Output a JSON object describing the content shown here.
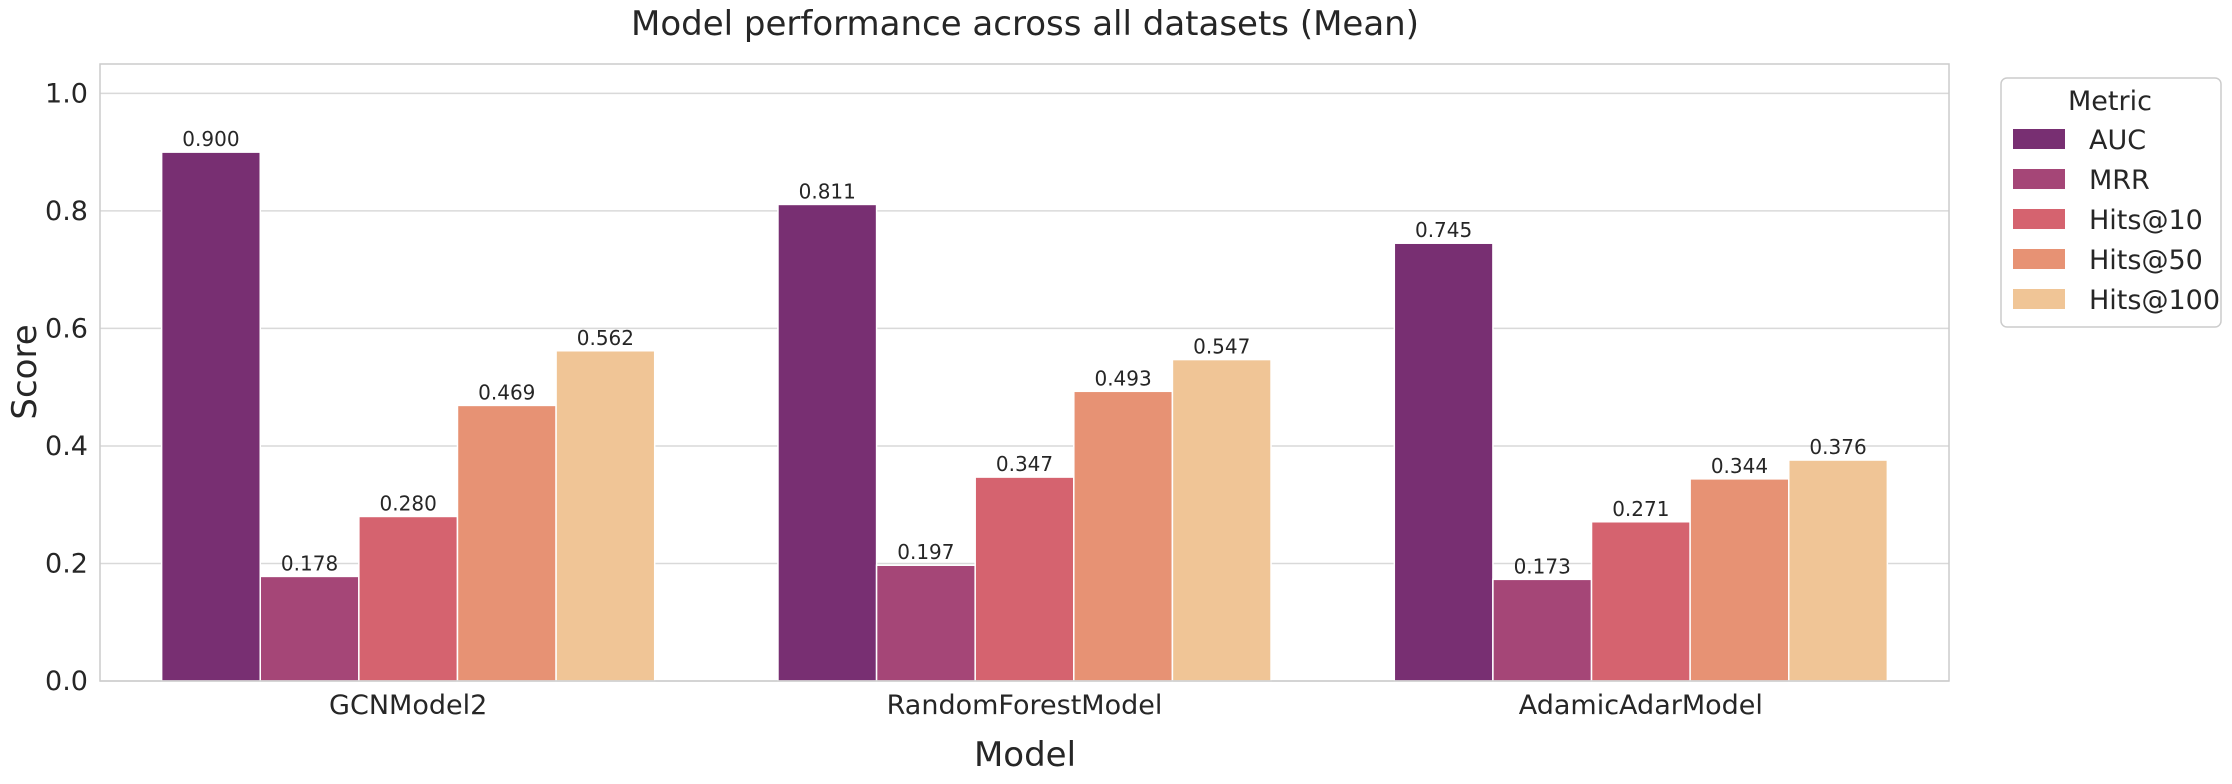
{
  "chart_data": {
    "type": "bar",
    "title": "Model performance across all datasets (Mean)",
    "xlabel": "Model",
    "ylabel": "Score",
    "categories": [
      "GCNModel2",
      "RandomForestModel",
      "AdamicAdarModel"
    ],
    "ylim": [
      0,
      1.05
    ],
    "yticks": [
      "0.0",
      "0.2",
      "0.4",
      "0.6",
      "0.8",
      "1.0"
    ],
    "grid": true,
    "legend": {
      "title": "Metric",
      "placement": "outside-top-right"
    },
    "series": [
      {
        "name": "AUC",
        "color": "#782f72",
        "values": [
          0.9,
          0.811,
          0.745
        ],
        "labels": [
          "0.900",
          "0.811",
          "0.745"
        ]
      },
      {
        "name": "MRR",
        "color": "#a54677",
        "values": [
          0.178,
          0.197,
          0.173
        ],
        "labels": [
          "0.178",
          "0.197",
          "0.173"
        ]
      },
      {
        "name": "Hits@10",
        "color": "#d5636f",
        "values": [
          0.28,
          0.347,
          0.271
        ],
        "labels": [
          "0.280",
          "0.347",
          "0.271"
        ]
      },
      {
        "name": "Hits@50",
        "color": "#e79274",
        "values": [
          0.469,
          0.493,
          0.344
        ],
        "labels": [
          "0.469",
          "0.493",
          "0.344"
        ]
      },
      {
        "name": "Hits@100",
        "color": "#f0c596",
        "values": [
          0.562,
          0.547,
          0.376
        ],
        "labels": [
          "0.562",
          "0.547",
          "0.376"
        ]
      }
    ]
  }
}
